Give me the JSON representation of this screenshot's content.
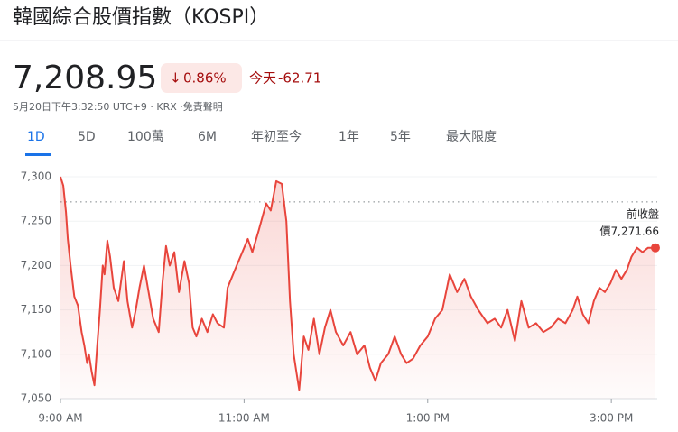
{
  "header": {
    "title": "韓國綜合股價指數（KOSPI）",
    "price": "7,208.95",
    "change_percent": "0.86%",
    "today": "今天",
    "change": "-62.71",
    "timestamp": "5月20日下午3:32:50 UTC+9 · KRX ·免責聲明",
    "tabs": [
      "1D",
      "5D",
      "100萬",
      "6M",
      "年初至今",
      "1年",
      "5年",
      "最大限度"
    ]
  },
  "chart_data": {
    "type": "line",
    "color": "#e8453c",
    "x": [
      9.0,
      9.03,
      9.06,
      9.08,
      9.11,
      9.15,
      9.19,
      9.23,
      9.26,
      9.29,
      9.31,
      9.34,
      9.37,
      9.4,
      9.43,
      9.46,
      9.48,
      9.51,
      9.54,
      9.58,
      9.63,
      9.69,
      9.73,
      9.78,
      9.82,
      9.86,
      9.91,
      9.96,
      10.01,
      10.07,
      10.11,
      10.15,
      10.19,
      10.24,
      10.29,
      10.35,
      10.4,
      10.44,
      10.48,
      10.54,
      10.6,
      10.66,
      10.71,
      10.78,
      10.82,
      10.86,
      10.92,
      10.98,
      11.04,
      11.09,
      11.16,
      11.24,
      11.29,
      11.35,
      11.41,
      11.46,
      11.5,
      11.54,
      11.57,
      11.6,
      11.65,
      11.7,
      11.76,
      11.82,
      11.88,
      11.94,
      12.0,
      12.08,
      12.16,
      12.23,
      12.31,
      12.37,
      12.43,
      12.49,
      12.57,
      12.64,
      12.71,
      12.77,
      12.84,
      12.92,
      13.0,
      13.08,
      13.16,
      13.24,
      13.32,
      13.4,
      13.47,
      13.55,
      13.65,
      13.73,
      13.8,
      13.87,
      13.95,
      14.02,
      14.1,
      14.18,
      14.26,
      14.34,
      14.42,
      14.5,
      14.58,
      14.63,
      14.69,
      14.75,
      14.81,
      14.87,
      14.93,
      14.99,
      15.05,
      15.11,
      15.17,
      15.22,
      15.28,
      15.34,
      15.4,
      15.48
    ],
    "values": [
      7300,
      7290,
      7260,
      7230,
      7200,
      7165,
      7155,
      7125,
      7110,
      7090,
      7100,
      7080,
      7065,
      7110,
      7150,
      7200,
      7190,
      7228,
      7210,
      7175,
      7160,
      7205,
      7160,
      7130,
      7150,
      7175,
      7200,
      7170,
      7140,
      7125,
      7180,
      7222,
      7200,
      7215,
      7170,
      7205,
      7180,
      7130,
      7120,
      7140,
      7125,
      7145,
      7135,
      7130,
      7175,
      7185,
      7200,
      7215,
      7230,
      7215,
      7240,
      7270,
      7262,
      7295,
      7292,
      7250,
      7160,
      7100,
      7080,
      7060,
      7120,
      7105,
      7140,
      7100,
      7130,
      7150,
      7125,
      7110,
      7125,
      7100,
      7110,
      7085,
      7070,
      7090,
      7100,
      7120,
      7100,
      7090,
      7095,
      7110,
      7120,
      7140,
      7150,
      7190,
      7170,
      7185,
      7165,
      7150,
      7135,
      7140,
      7130,
      7150,
      7115,
      7160,
      7130,
      7135,
      7125,
      7130,
      7140,
      7135,
      7150,
      7165,
      7145,
      7135,
      7160,
      7175,
      7170,
      7180,
      7195,
      7185,
      7195,
      7210,
      7220,
      7215,
      7220,
      7220
    ],
    "xlim": [
      9,
      15.5
    ],
    "xticks": [
      {
        "value": 9,
        "label": "9:00 AM"
      },
      {
        "value": 11,
        "label": "11:00 AM"
      },
      {
        "value": 13,
        "label": "1:00 PM"
      },
      {
        "value": 15,
        "label": "3:00 PM"
      }
    ],
    "ylim": [
      7050,
      7300
    ],
    "yticks": [
      {
        "value": 7050,
        "label": "7,050"
      },
      {
        "value": 7100,
        "label": "7,100"
      },
      {
        "value": 7150,
        "label": "7,150"
      },
      {
        "value": 7200,
        "label": "7,200"
      },
      {
        "value": 7250,
        "label": "7,250"
      },
      {
        "value": 7300,
        "label": "7,300"
      }
    ],
    "grid": true,
    "previous_close": 7271.66,
    "previous_close_label_lines": [
      "前收盤",
      "價7,271.66"
    ]
  }
}
